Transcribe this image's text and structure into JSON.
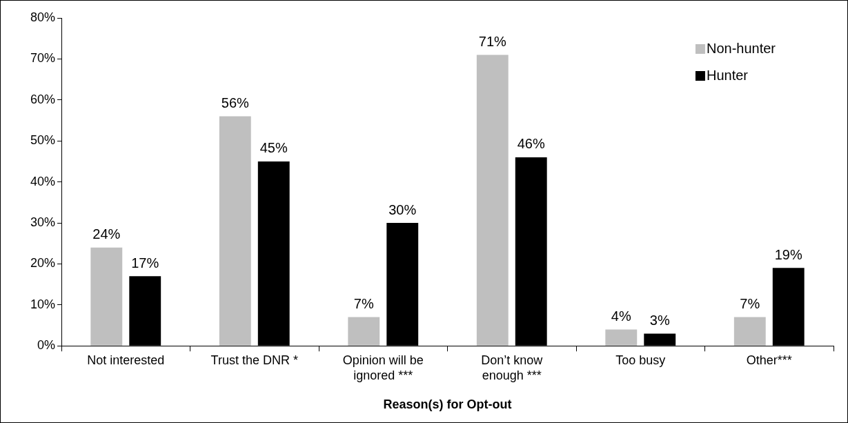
{
  "chart_data": {
    "type": "bar",
    "xlabel": "Reason(s) for Opt-out",
    "categories": [
      "Not interested",
      "Trust the DNR *",
      "Opinion will be ignored ***",
      "Don’t know enough ***",
      "Too busy",
      "Other***"
    ],
    "series": [
      {
        "name": "Non-hunter",
        "color": "#bfbfbf",
        "values": [
          24,
          56,
          7,
          71,
          4,
          7
        ],
        "value_labels": [
          "24%",
          "56%",
          "7%",
          "71%",
          "4%",
          "7%"
        ]
      },
      {
        "name": "Hunter",
        "color": "#000000",
        "values": [
          17,
          45,
          30,
          46,
          3,
          19
        ],
        "value_labels": [
          "17%",
          "45%",
          "30%",
          "46%",
          "3%",
          "19%"
        ]
      }
    ],
    "ylim": [
      0,
      80
    ],
    "yticks": [
      {
        "value": 0,
        "label": "0%"
      },
      {
        "value": 10,
        "label": "10%"
      },
      {
        "value": 20,
        "label": "20%"
      },
      {
        "value": 30,
        "label": "30%"
      },
      {
        "value": 40,
        "label": "40%"
      },
      {
        "value": 50,
        "label": "50%"
      },
      {
        "value": 60,
        "label": "60%"
      },
      {
        "value": 70,
        "label": "70%"
      },
      {
        "value": 80,
        "label": "80%"
      }
    ],
    "grid": false,
    "legend": "top right"
  }
}
